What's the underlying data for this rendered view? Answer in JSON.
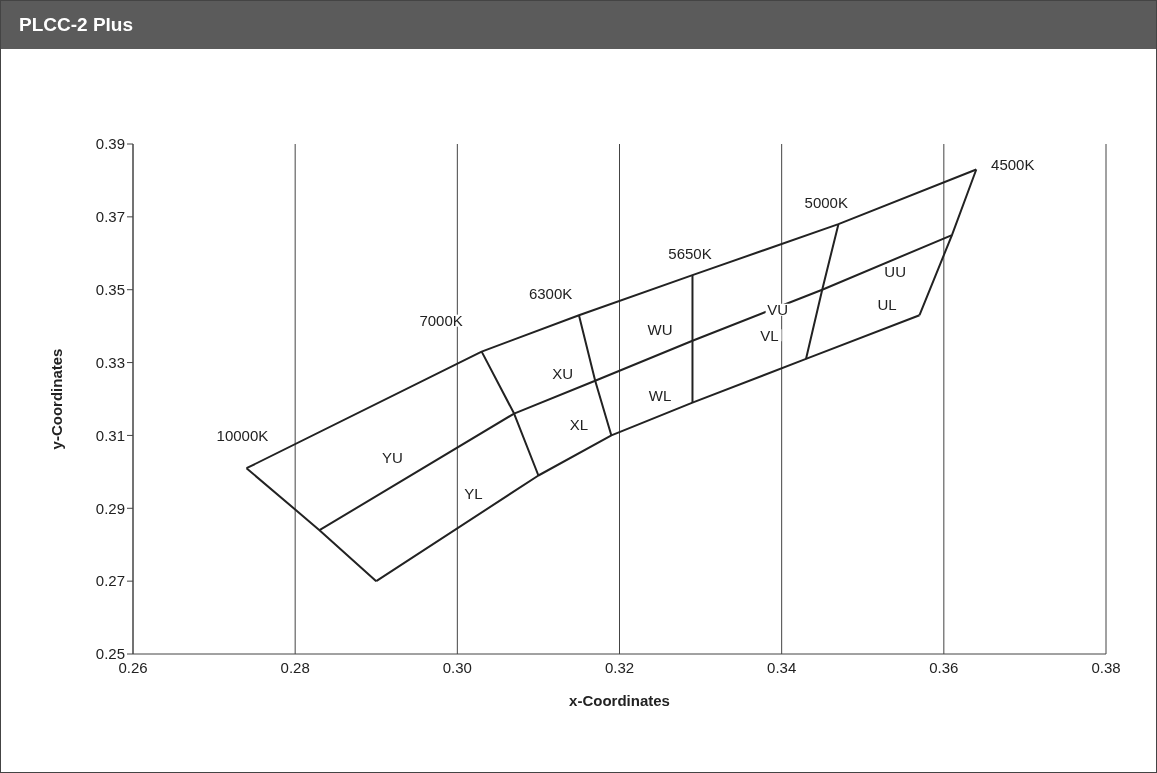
{
  "chart_data": {
    "type": "line",
    "title": "PLCC-2 Plus",
    "xlabel": "x-Coordinates",
    "ylabel": "y-Coordinates",
    "xlim": [
      0.26,
      0.38
    ],
    "xticks": [
      0.26,
      0.28,
      {
        "value": 0.3,
        "label": "0.30"
      },
      0.32,
      0.34,
      0.36,
      0.38
    ],
    "ylim": [
      0.25,
      0.39
    ],
    "yticks": [
      0.25,
      0.27,
      0.29,
      0.31,
      0.33,
      0.35,
      0.37,
      0.39
    ],
    "grid": true,
    "marker": "none",
    "line_style": "solid",
    "series": [
      {
        "color": "#222222",
        "x": [
          0.274,
          0.303,
          0.315,
          0.329,
          0.347,
          0.364
        ],
        "values": [
          0.301,
          0.333,
          0.343,
          0.354,
          0.368,
          0.383
        ]
      },
      {
        "color": "#222222",
        "x": [
          0.357,
          0.361,
          0.364
        ],
        "values": [
          0.343,
          0.365,
          0.383
        ]
      },
      {
        "color": "#222222",
        "x": [
          0.29,
          0.31,
          0.319,
          0.329,
          0.343,
          0.357
        ],
        "values": [
          0.27,
          0.299,
          0.31,
          0.319,
          0.331,
          0.343
        ]
      },
      {
        "color": "#222222",
        "x": [
          0.274,
          0.283,
          0.29
        ],
        "values": [
          0.301,
          0.284,
          0.27
        ]
      },
      {
        "color": "#222222",
        "x": [
          0.283,
          0.307,
          0.317,
          0.329,
          0.345,
          0.361
        ],
        "values": [
          0.284,
          0.316,
          0.325,
          0.336,
          0.35,
          0.365
        ]
      },
      {
        "color": "#222222",
        "x": [
          0.303,
          0.307,
          0.31
        ],
        "values": [
          0.333,
          0.316,
          0.299
        ]
      },
      {
        "color": "#222222",
        "x": [
          0.315,
          0.317,
          0.319
        ],
        "values": [
          0.343,
          0.325,
          0.31
        ]
      },
      {
        "color": "#222222",
        "x": [
          0.329,
          0.329,
          0.329
        ],
        "values": [
          0.354,
          0.336,
          0.319
        ]
      },
      {
        "color": "#222222",
        "x": [
          0.343,
          0.345,
          0.347
        ],
        "values": [
          0.331,
          0.35,
          0.368
        ]
      }
    ],
    "annotations": [
      "10000K",
      "7000K",
      "6300K",
      "5650K",
      "5000K",
      "4500K",
      "YU",
      "YL",
      "XU",
      "XL",
      "WU",
      "WL",
      "VU",
      "VL",
      "UU",
      "UL"
    ]
  }
}
